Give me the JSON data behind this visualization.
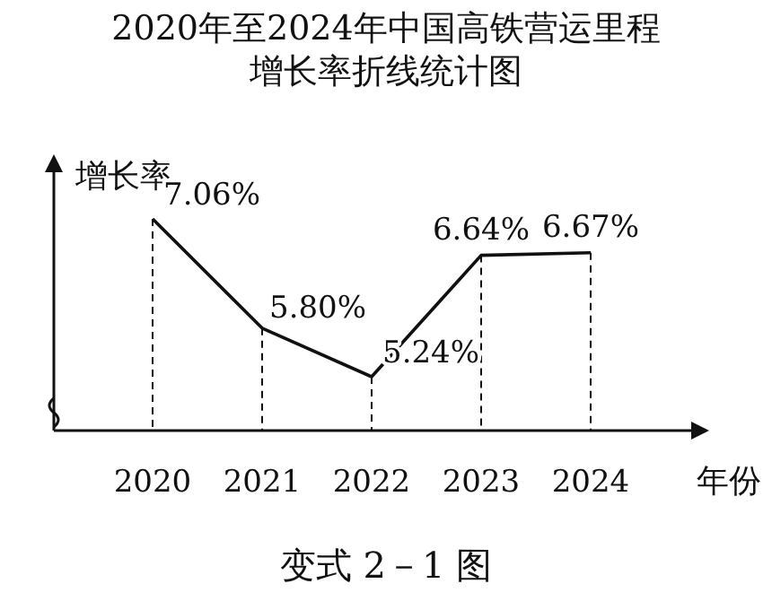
{
  "chart_data": {
    "type": "line",
    "title": "2020年至2024年中国高铁营运里程",
    "subtitle": "增长率折线统计图",
    "ylabel": "增长率",
    "xlabel": "年份",
    "categories": [
      "2020",
      "2021",
      "2022",
      "2023",
      "2024"
    ],
    "series": [
      {
        "color": "#111111",
        "values": [
          7.06,
          5.8,
          5.24,
          6.64,
          6.67
        ],
        "value_labels": [
          "7.06%",
          "5.80%",
          "5.24%",
          "6.64%",
          "6.67%"
        ]
      }
    ],
    "annotations": [
      "变式 2－1 图"
    ],
    "marker": "none",
    "line_style": "solid",
    "grid": "x"
  }
}
